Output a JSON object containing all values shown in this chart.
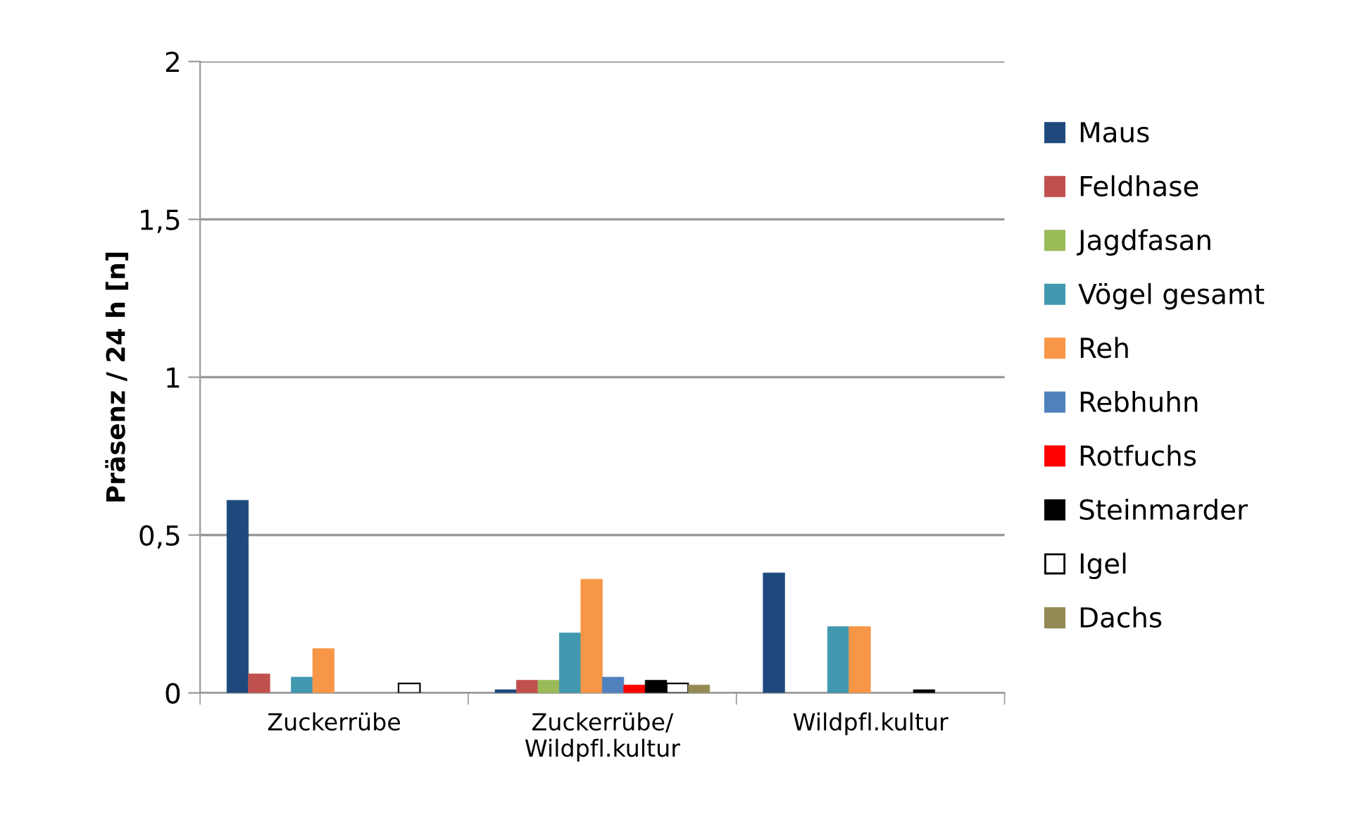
{
  "chart_data": {
    "type": "bar",
    "ylabel": "Präsenz / 24 h [n]",
    "categories": [
      "Zuckerrübe",
      "Zuckerrübe/\nWildpfl.kultur",
      "Wildpfl.kultur"
    ],
    "series": [
      {
        "name": "Maus",
        "color": "#1f497d",
        "values": [
          0.61,
          0.01,
          0.38
        ]
      },
      {
        "name": "Feldhase",
        "color": "#c0504d",
        "values": [
          0.06,
          0.04,
          null
        ]
      },
      {
        "name": "Jagdfasan",
        "color": "#9bbb59",
        "values": [
          null,
          0.04,
          null
        ]
      },
      {
        "name": "Vögel gesamt",
        "color": "#4198af",
        "values": [
          0.05,
          0.19,
          0.21
        ]
      },
      {
        "name": "Reh",
        "color": "#f79646",
        "values": [
          0.14,
          0.36,
          0.21
        ]
      },
      {
        "name": "Rebhuhn",
        "color": "#4f81bd",
        "values": [
          null,
          0.05,
          null
        ]
      },
      {
        "name": "Rotfuchs",
        "color": "#ff0000",
        "values": [
          null,
          0.025,
          null
        ]
      },
      {
        "name": "Steinmarder",
        "color": "#000000",
        "values": [
          null,
          0.04,
          0.01
        ]
      },
      {
        "name": "Igel",
        "color": "#ffffff",
        "values": [
          0.03,
          0.03,
          null
        ]
      },
      {
        "name": "Dachs",
        "color": "#948a54",
        "values": [
          null,
          0.025,
          null
        ]
      }
    ],
    "ylim": [
      0,
      2
    ],
    "yticks": [
      0,
      {
        "value": 0.5,
        "label": "0,5"
      },
      1,
      {
        "value": 1.5,
        "label": "1,5"
      },
      2
    ],
    "grid": "y",
    "legend": "right"
  }
}
